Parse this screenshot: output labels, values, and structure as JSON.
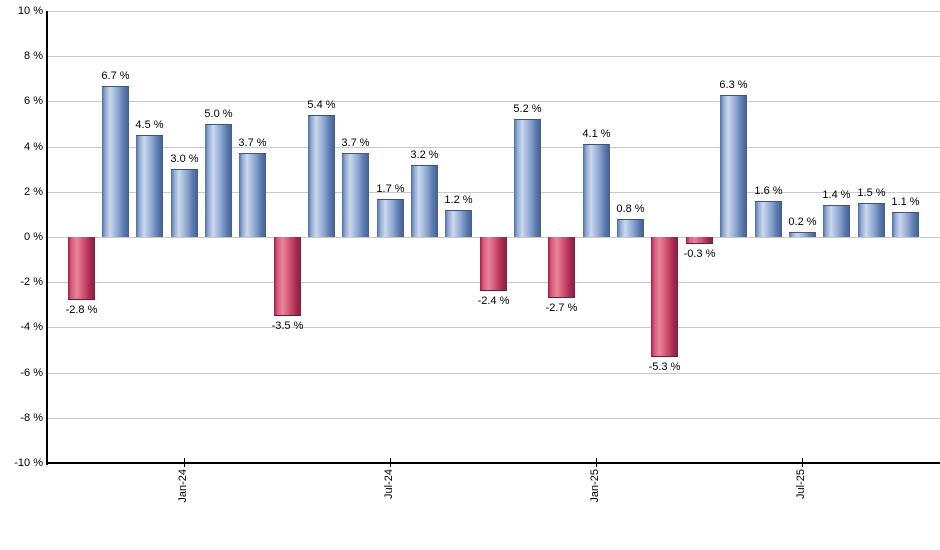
{
  "chart_data": {
    "type": "bar",
    "title": "",
    "xlabel": "",
    "ylabel": "",
    "ylim": [
      -10,
      10
    ],
    "y_tick_step": 2,
    "grid": true,
    "legend_position": "none",
    "values": [
      -2.8,
      6.7,
      4.5,
      3.0,
      5.0,
      3.7,
      -3.5,
      5.4,
      3.7,
      1.7,
      3.2,
      1.2,
      -2.4,
      5.2,
      -2.7,
      4.1,
      0.8,
      -5.3,
      -0.3,
      6.3,
      1.6,
      0.2,
      1.4,
      1.5,
      1.1
    ],
    "bar_labels": [
      "-2.8 %",
      "6.7 %",
      "4.5 %",
      "3.0 %",
      "5.0 %",
      "3.7 %",
      "-3.5 %",
      "5.4 %",
      "3.7 %",
      "1.7 %",
      "3.2 %",
      "1.2 %",
      "-2.4 %",
      "5.2 %",
      "-2.7 %",
      "4.1 %",
      "0.8 %",
      "-5.3 %",
      "-0.3 %",
      "6.3 %",
      "1.6 %",
      "0.2 %",
      "1.4 %",
      "1.5 %",
      "1.1 %"
    ],
    "x_ticks": [
      {
        "bar_index": 3,
        "label": "Jan-24"
      },
      {
        "bar_index": 9,
        "label": "Jul-24"
      },
      {
        "bar_index": 15,
        "label": "Jan-25"
      },
      {
        "bar_index": 21,
        "label": "Jul-25"
      }
    ],
    "y_ticks": [
      {
        "value": 10,
        "label": "10 %"
      },
      {
        "value": 8,
        "label": "8 %"
      },
      {
        "value": 6,
        "label": "6 %"
      },
      {
        "value": 4,
        "label": "4 %"
      },
      {
        "value": 2,
        "label": "2 %"
      },
      {
        "value": 0,
        "label": "0 %"
      },
      {
        "value": -2,
        "label": "-2 %"
      },
      {
        "value": -4,
        "label": "-4 %"
      },
      {
        "value": -6,
        "label": "-6 %"
      },
      {
        "value": -8,
        "label": "-8 %"
      },
      {
        "value": -10,
        "label": "-10 %"
      }
    ],
    "colors": {
      "positive_bar_edge": "#4d6fa4",
      "positive_bar_highlight": "#ccd8ee",
      "positive_bar_dark": "#425e8e",
      "negative_bar_edge": "#a81843",
      "negative_bar_highlight": "#e8849b",
      "negative_bar_dark": "#85203f",
      "gridline": "#c9c9c9",
      "axis": "#000000",
      "label_text": "#000000",
      "background": "#ffffff"
    }
  }
}
